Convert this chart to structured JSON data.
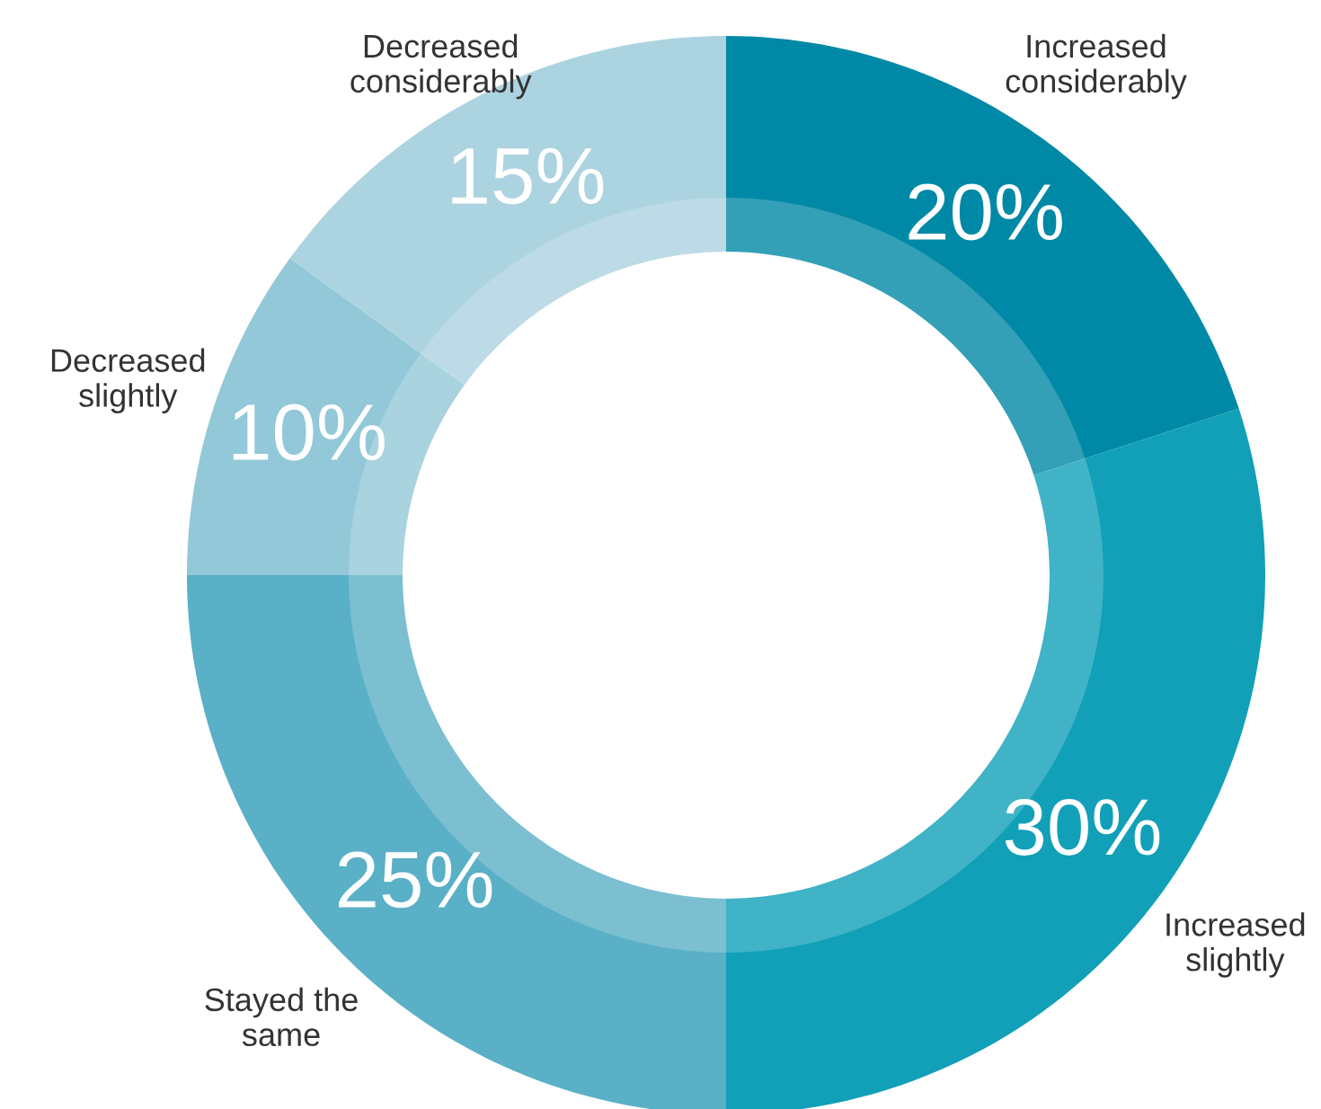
{
  "chart_data": {
    "type": "donut",
    "categories": [
      "Increased considerably",
      "Increased slightly",
      "Stayed the same",
      "Decreased slightly",
      "Decreased considerably"
    ],
    "values": [
      20,
      30,
      25,
      10,
      15
    ],
    "colors": [
      "#0089a6",
      "#11a0b8",
      "#5ab0c6",
      "#93c8d8",
      "#acd3e0"
    ],
    "value_labels": [
      "20%",
      "30%",
      "25%",
      "10%",
      "15%"
    ]
  }
}
